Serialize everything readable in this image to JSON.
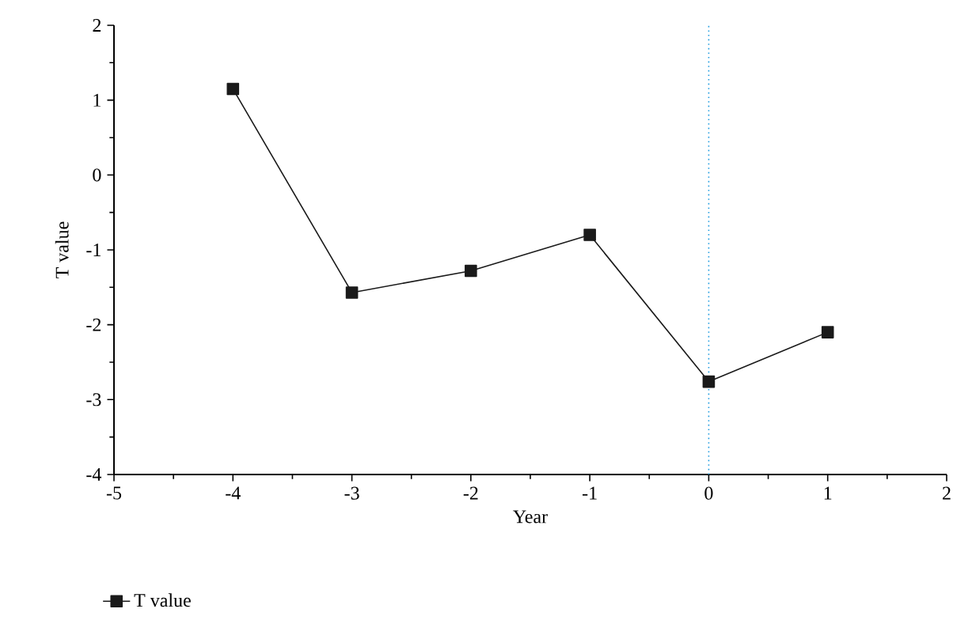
{
  "chart_data": {
    "type": "line",
    "xlabel": "Year",
    "ylabel": "T value",
    "x": [
      -4,
      -3,
      -2,
      -1,
      0,
      1
    ],
    "series": [
      {
        "name": "T value",
        "color": "#1a1a1a",
        "values": [
          1.15,
          -1.57,
          -1.28,
          -0.8,
          -2.76,
          -2.1
        ]
      }
    ],
    "xlim": [
      -5,
      2
    ],
    "xticks": [
      -5,
      -4,
      -3,
      -2,
      -1,
      0,
      1,
      2
    ],
    "ylim": [
      -4,
      2
    ],
    "yticks": [
      -4,
      -3,
      -2,
      -1,
      0,
      1,
      2
    ],
    "ref_lines": [
      {
        "axis": "x",
        "value": 0,
        "color": "#1e9be0",
        "line_style": "dotted"
      }
    ],
    "marker": "square",
    "line_style": "solid",
    "legend": "bottom left",
    "grid": false
  }
}
